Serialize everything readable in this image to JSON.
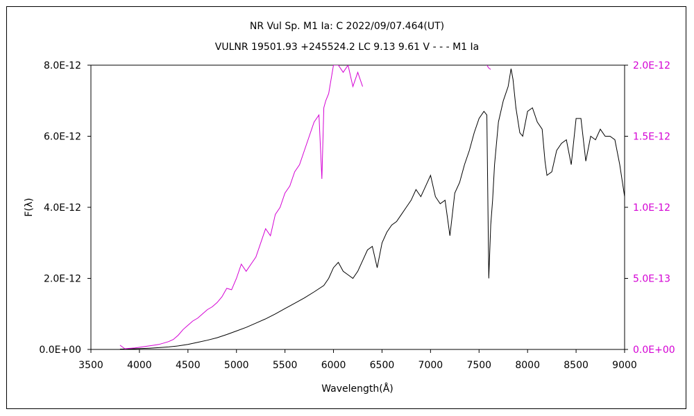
{
  "chart_data": {
    "type": "line",
    "title": "NR Vul    Sp. M1 Ia: C    2022/09/07.464(UT)",
    "subtitle": "VULNR 19501.93 +245524.2 LC 9.13 9.61  V - - - M1 Ia",
    "xlabel": "Wavelength(Å)",
    "ylabel": "F(λ)",
    "xlim": [
      3500,
      9000
    ],
    "ylim_left": [
      0,
      8e-12
    ],
    "ylim_right": [
      0,
      2e-12
    ],
    "x_ticks": [
      "3500",
      "4000",
      "4500",
      "5000",
      "5500",
      "6000",
      "6500",
      "7000",
      "7500",
      "8000",
      "8500",
      "9000"
    ],
    "y_ticks_left": [
      "0.0E+00",
      "2.0E-12",
      "4.0E-12",
      "6.0E-12",
      "8.0E-12"
    ],
    "y_ticks_right": [
      "0.0E+00",
      "5.0E-13",
      "1.0E-12",
      "1.5E-12",
      "2.0E-12"
    ],
    "colors": {
      "left_series": "#000000",
      "right_series": "#d400d4",
      "right_axis_labels": "#d400d4"
    },
    "series": [
      {
        "axis": "left",
        "color": "#000000",
        "x": [
          3800,
          3900,
          4000,
          4100,
          4200,
          4300,
          4400,
          4500,
          4600,
          4700,
          4800,
          4900,
          5000,
          5100,
          5200,
          5300,
          5400,
          5500,
          5600,
          5700,
          5800,
          5900,
          5950,
          6000,
          6050,
          6100,
          6150,
          6200,
          6250,
          6300,
          6350,
          6400,
          6450,
          6500,
          6550,
          6600,
          6650,
          6700,
          6750,
          6800,
          6850,
          6900,
          6950,
          7000,
          7050,
          7100,
          7150,
          7200,
          7250,
          7300,
          7350,
          7400,
          7450,
          7500,
          7550,
          7580,
          7600,
          7620,
          7640,
          7660,
          7700,
          7750,
          7800,
          7830,
          7850,
          7880,
          7920,
          7950,
          8000,
          8050,
          8100,
          8150,
          8180,
          8200,
          8250,
          8300,
          8350,
          8400,
          8450,
          8500,
          8550,
          8600,
          8650,
          8700,
          8750,
          8800,
          8850,
          8900,
          8950,
          9000
        ],
        "y": [
          1e-14,
          1.5e-14,
          2.5e-14,
          3.5e-14,
          5e-14,
          7e-14,
          1e-13,
          1.4e-13,
          2e-13,
          2.6e-13,
          3.3e-13,
          4.2e-13,
          5.2e-13,
          6.2e-13,
          7.4e-13,
          8.6e-13,
          1e-12,
          1.15e-12,
          1.3e-12,
          1.45e-12,
          1.62e-12,
          1.8e-12,
          2e-12,
          2.3e-12,
          2.45e-12,
          2.2e-12,
          2.1e-12,
          2e-12,
          2.2e-12,
          2.5e-12,
          2.8e-12,
          2.9e-12,
          2.3e-12,
          3e-12,
          3.3e-12,
          3.5e-12,
          3.6e-12,
          3.8e-12,
          4e-12,
          4.2e-12,
          4.5e-12,
          4.3e-12,
          4.6e-12,
          4.9e-12,
          4.3e-12,
          4.1e-12,
          4.2e-12,
          3.2e-12,
          4.4e-12,
          4.7e-12,
          5.2e-12,
          5.6e-12,
          6.1e-12,
          6.5e-12,
          6.7e-12,
          6.6e-12,
          2e-12,
          3.5e-12,
          4.2e-12,
          5.2e-12,
          6.4e-12,
          7e-12,
          7.4e-12,
          7.9e-12,
          7.6e-12,
          6.8e-12,
          6.1e-12,
          6e-12,
          6.7e-12,
          6.8e-12,
          6.4e-12,
          6.2e-12,
          5.3e-12,
          4.9e-12,
          5e-12,
          5.6e-12,
          5.8e-12,
          5.9e-12,
          5.2e-12,
          6.5e-12,
          6.5e-12,
          5.3e-12,
          6e-12,
          5.9e-12,
          6.2e-12,
          6e-12,
          6e-12,
          5.9e-12,
          5.2e-12,
          4.3e-12
        ]
      },
      {
        "axis": "right",
        "color": "#d400d4",
        "x": [
          3800,
          3850,
          3900,
          3950,
          4000,
          4050,
          4100,
          4150,
          4200,
          4250,
          4300,
          4350,
          4400,
          4450,
          4500,
          4550,
          4600,
          4650,
          4700,
          4750,
          4800,
          4850,
          4900,
          4950,
          5000,
          5050,
          5100,
          5150,
          5200,
          5250,
          5300,
          5350,
          5400,
          5450,
          5500,
          5550,
          5600,
          5650,
          5700,
          5750,
          5800,
          5850,
          5880,
          5900,
          5920,
          5950,
          6000,
          6050,
          6100,
          6150,
          6200,
          6250,
          6300
        ],
        "y": [
          3e-14,
          5e-15,
          8e-15,
          1e-14,
          1.5e-14,
          2e-14,
          2.5e-14,
          3e-14,
          3.5e-14,
          4.5e-14,
          5.5e-14,
          7e-14,
          1e-13,
          1.4e-13,
          1.7e-13,
          2e-13,
          2.2e-13,
          2.5e-13,
          2.8e-13,
          3e-13,
          3.3e-13,
          3.7e-13,
          4.3e-13,
          4.2e-13,
          5e-13,
          6e-13,
          5.5e-13,
          6e-13,
          6.5e-13,
          7.5e-13,
          8.5e-13,
          8e-13,
          9.5e-13,
          1e-12,
          1.1e-12,
          1.15e-12,
          1.25e-12,
          1.3e-12,
          1.4e-12,
          1.5e-12,
          1.6e-12,
          1.65e-12,
          1.2e-12,
          1.7e-12,
          1.75e-12,
          1.8e-12,
          2e-12,
          2e-12,
          1.95e-12,
          2e-12,
          1.85e-12,
          1.95e-12,
          1.85e-12
        ]
      },
      {
        "axis": "right",
        "color": "#d400d4",
        "x": [
          7580,
          7600,
          7620
        ],
        "y": [
          2e-12,
          1.98e-12,
          1.97e-12
        ]
      }
    ]
  }
}
